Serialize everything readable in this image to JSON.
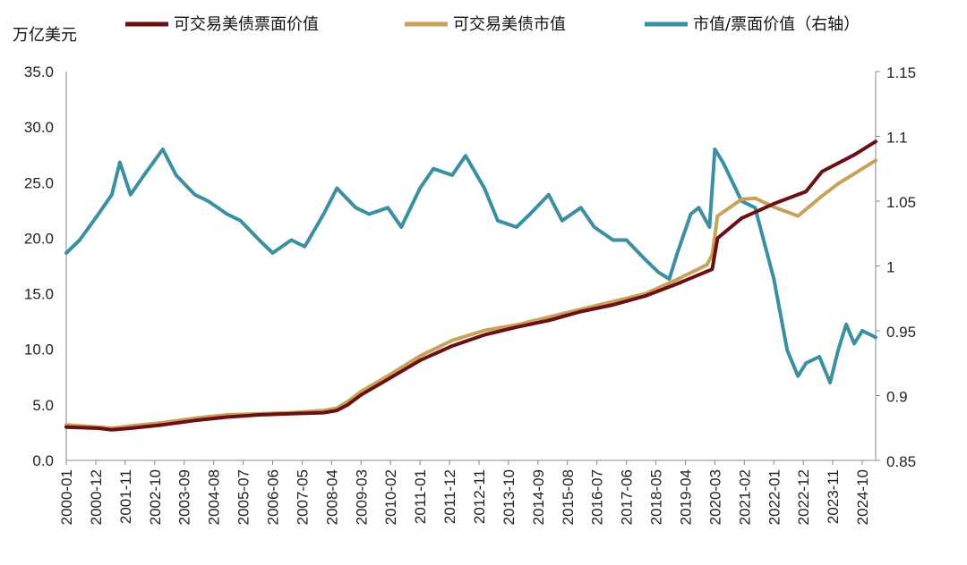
{
  "chart_data": {
    "type": "line",
    "left_axis_unit": "万亿美元",
    "ylim_left": [
      0,
      35
    ],
    "left_ticks": [
      "35.0",
      "30.0",
      "25.0",
      "20.0",
      "15.0",
      "10.0",
      "5.0",
      "0.0"
    ],
    "ylim_right": [
      0.85,
      1.15
    ],
    "right_ticks": [
      "1.15",
      "1.1",
      "1.05",
      "1",
      "0.95",
      "0.9",
      "0.85"
    ],
    "x_range": [
      "2000-01",
      "2025-03"
    ],
    "x_ticks": [
      "2000-01",
      "2000-12",
      "2001-11",
      "2002-10",
      "2003-09",
      "2004-08",
      "2005-07",
      "2006-06",
      "2007-05",
      "2008-04",
      "2009-03",
      "2010-02",
      "2011-01",
      "2011-12",
      "2012-11",
      "2013-10",
      "2014-09",
      "2015-08",
      "2016-07",
      "2017-06",
      "2018-05",
      "2019-04",
      "2020-03",
      "2021-02",
      "2022-01",
      "2022-12",
      "2023-11",
      "2024-10"
    ],
    "legend_position": "top",
    "series": [
      {
        "name": "可交易美债票面价值",
        "axis": "left",
        "color": "#6b0f12",
        "points": [
          [
            "2000-01",
            3.0
          ],
          [
            "2001-01",
            2.9
          ],
          [
            "2001-06",
            2.75
          ],
          [
            "2002-01",
            2.9
          ],
          [
            "2003-01",
            3.2
          ],
          [
            "2004-01",
            3.6
          ],
          [
            "2005-01",
            3.9
          ],
          [
            "2006-01",
            4.1
          ],
          [
            "2007-01",
            4.2
          ],
          [
            "2008-01",
            4.3
          ],
          [
            "2008-06",
            4.5
          ],
          [
            "2008-10",
            5.0
          ],
          [
            "2009-03",
            5.9
          ],
          [
            "2010-01",
            7.3
          ],
          [
            "2011-01",
            9.0
          ],
          [
            "2012-01",
            10.3
          ],
          [
            "2013-01",
            11.3
          ],
          [
            "2014-01",
            12.0
          ],
          [
            "2015-01",
            12.6
          ],
          [
            "2016-01",
            13.4
          ],
          [
            "2017-01",
            14.0
          ],
          [
            "2018-01",
            14.8
          ],
          [
            "2019-01",
            15.9
          ],
          [
            "2019-12",
            17.0
          ],
          [
            "2020-02",
            17.2
          ],
          [
            "2020-04",
            20.0
          ],
          [
            "2021-01",
            21.8
          ],
          [
            "2022-01",
            23.1
          ],
          [
            "2023-01",
            24.2
          ],
          [
            "2023-07",
            26.0
          ],
          [
            "2024-07",
            27.5
          ],
          [
            "2025-03",
            28.7
          ]
        ]
      },
      {
        "name": "可交易美债市值",
        "axis": "left",
        "color": "#c9a25a",
        "points": [
          [
            "2000-01",
            3.2
          ],
          [
            "2001-01",
            3.0
          ],
          [
            "2001-06",
            2.9
          ],
          [
            "2002-01",
            3.1
          ],
          [
            "2003-01",
            3.4
          ],
          [
            "2004-01",
            3.8
          ],
          [
            "2005-01",
            4.1
          ],
          [
            "2006-01",
            4.2
          ],
          [
            "2007-01",
            4.3
          ],
          [
            "2008-01",
            4.5
          ],
          [
            "2008-06",
            4.7
          ],
          [
            "2008-10",
            5.3
          ],
          [
            "2009-03",
            6.2
          ],
          [
            "2010-01",
            7.6
          ],
          [
            "2011-01",
            9.4
          ],
          [
            "2012-01",
            10.8
          ],
          [
            "2013-01",
            11.7
          ],
          [
            "2014-01",
            12.2
          ],
          [
            "2015-01",
            12.9
          ],
          [
            "2016-01",
            13.6
          ],
          [
            "2017-01",
            14.3
          ],
          [
            "2018-01",
            15.0
          ],
          [
            "2019-01",
            16.3
          ],
          [
            "2019-12",
            17.6
          ],
          [
            "2020-02",
            18.5
          ],
          [
            "2020-04",
            22.0
          ],
          [
            "2021-01",
            23.5
          ],
          [
            "2021-06",
            23.6
          ],
          [
            "2022-01",
            22.8
          ],
          [
            "2022-10",
            22.0
          ],
          [
            "2023-07",
            23.8
          ],
          [
            "2024-01",
            24.9
          ],
          [
            "2024-07",
            25.8
          ],
          [
            "2025-03",
            27.0
          ]
        ]
      },
      {
        "name": "市值/票面价值（右轴）",
        "axis": "right",
        "color": "#3b8fa3",
        "points": [
          [
            "2000-01",
            1.01
          ],
          [
            "2000-06",
            1.02
          ],
          [
            "2001-01",
            1.04
          ],
          [
            "2001-06",
            1.055
          ],
          [
            "2001-09",
            1.08
          ],
          [
            "2002-01",
            1.055
          ],
          [
            "2002-06",
            1.07
          ],
          [
            "2003-01",
            1.09
          ],
          [
            "2003-06",
            1.07
          ],
          [
            "2004-01",
            1.055
          ],
          [
            "2004-06",
            1.05
          ],
          [
            "2005-01",
            1.04
          ],
          [
            "2005-06",
            1.035
          ],
          [
            "2006-01",
            1.02
          ],
          [
            "2006-06",
            1.01
          ],
          [
            "2007-01",
            1.02
          ],
          [
            "2007-06",
            1.015
          ],
          [
            "2008-01",
            1.04
          ],
          [
            "2008-06",
            1.06
          ],
          [
            "2009-01",
            1.045
          ],
          [
            "2009-06",
            1.04
          ],
          [
            "2010-01",
            1.045
          ],
          [
            "2010-06",
            1.03
          ],
          [
            "2011-01",
            1.06
          ],
          [
            "2011-06",
            1.075
          ],
          [
            "2012-01",
            1.07
          ],
          [
            "2012-06",
            1.085
          ],
          [
            "2013-01",
            1.06
          ],
          [
            "2013-06",
            1.035
          ],
          [
            "2014-01",
            1.03
          ],
          [
            "2014-06",
            1.04
          ],
          [
            "2015-01",
            1.055
          ],
          [
            "2015-06",
            1.035
          ],
          [
            "2016-01",
            1.045
          ],
          [
            "2016-06",
            1.03
          ],
          [
            "2017-01",
            1.02
          ],
          [
            "2017-06",
            1.02
          ],
          [
            "2018-01",
            1.005
          ],
          [
            "2018-06",
            0.995
          ],
          [
            "2018-10",
            0.99
          ],
          [
            "2019-01",
            1.01
          ],
          [
            "2019-06",
            1.04
          ],
          [
            "2019-09",
            1.045
          ],
          [
            "2020-01",
            1.03
          ],
          [
            "2020-03",
            1.09
          ],
          [
            "2020-06",
            1.08
          ],
          [
            "2021-01",
            1.05
          ],
          [
            "2021-06",
            1.045
          ],
          [
            "2022-01",
            0.99
          ],
          [
            "2022-06",
            0.935
          ],
          [
            "2022-10",
            0.915
          ],
          [
            "2023-01",
            0.925
          ],
          [
            "2023-06",
            0.93
          ],
          [
            "2023-10",
            0.91
          ],
          [
            "2024-01",
            0.935
          ],
          [
            "2024-04",
            0.955
          ],
          [
            "2024-07",
            0.94
          ],
          [
            "2024-10",
            0.95
          ],
          [
            "2025-03",
            0.945
          ]
        ]
      }
    ]
  }
}
